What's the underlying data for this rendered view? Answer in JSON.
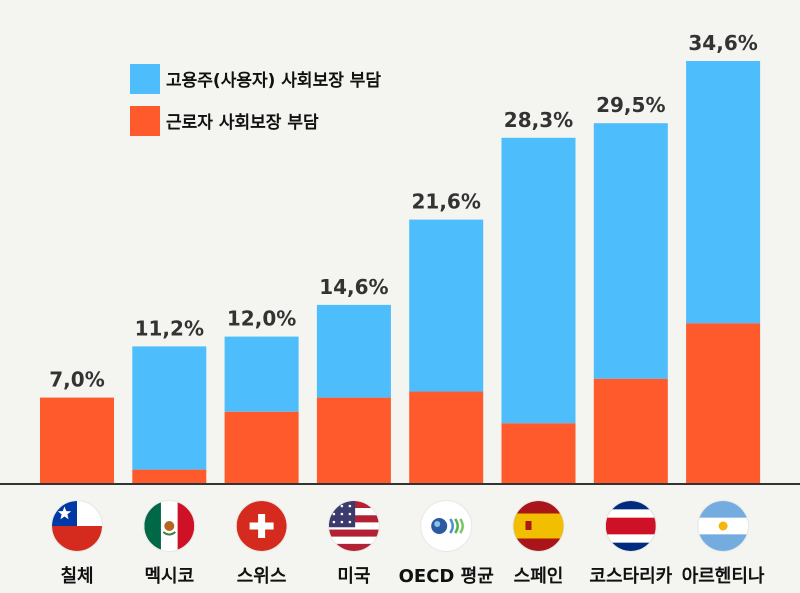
{
  "chart_data": {
    "type": "bar",
    "stacked": true,
    "title": "",
    "xlabel": "",
    "ylabel": "",
    "ylim": [
      0,
      34.6
    ],
    "categories": [
      "칠체",
      "멕시코",
      "스위스",
      "미국",
      "OECD 평균",
      "스페인",
      "코스타리카",
      "아르헨티나"
    ],
    "series": [
      {
        "name": "근로자 사회보장 부담",
        "color": "#ff5a2c",
        "values": [
          7.0,
          1.1,
          5.85,
          7.0,
          7.5,
          4.9,
          8.55,
          13.1
        ]
      },
      {
        "name": "고용주(사용자) 사회보장 부담",
        "color": "#4dbdfc",
        "values": [
          0.0,
          10.1,
          6.15,
          7.6,
          14.1,
          23.4,
          20.95,
          21.5
        ]
      }
    ],
    "totals": [
      "7,0%",
      "11,2%",
      "12,0%",
      "14,6%",
      "21,6%",
      "28,3%",
      "29,5%",
      "34,6%"
    ],
    "total_values": [
      7.0,
      11.2,
      12.0,
      14.6,
      21.6,
      28.3,
      29.5,
      34.6
    ],
    "legend": {
      "position": "top-left",
      "entries": [
        {
          "label": "고용주(사용자) 사회보장 부담",
          "color": "#4dbdfc"
        },
        {
          "label": "근로자 사회보장 부담",
          "color": "#ff5a2c"
        }
      ]
    },
    "flags": [
      "chile-flag",
      "mexico-flag",
      "switzerland-flag",
      "usa-flag",
      "oecd-flag",
      "spain-flag",
      "costa-rica-flag",
      "argentina-flag"
    ]
  }
}
